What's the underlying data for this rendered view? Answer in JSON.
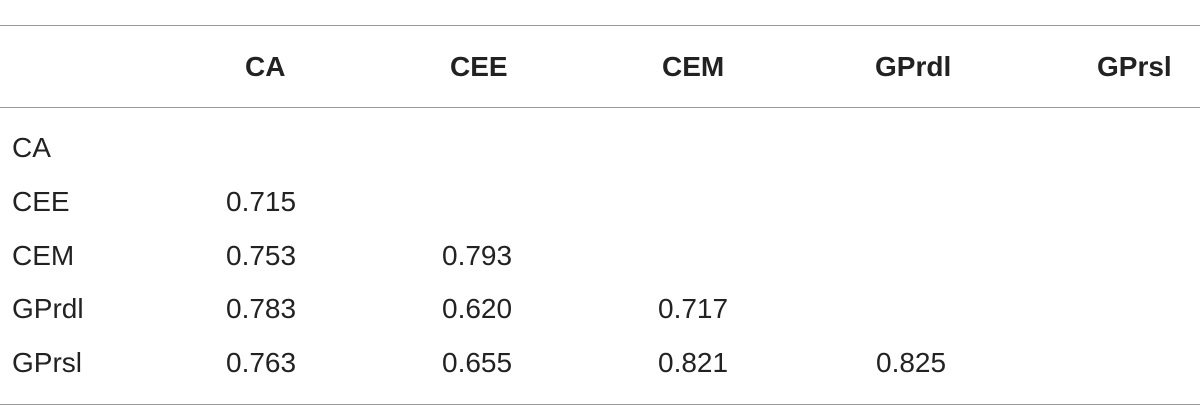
{
  "table": {
    "columns": [
      "CA",
      "CEE",
      "CEM",
      "GPrdl",
      "GPrsl"
    ],
    "rows": [
      {
        "label": "CA",
        "values": []
      },
      {
        "label": "CEE",
        "values": [
          "0.715"
        ]
      },
      {
        "label": "CEM",
        "values": [
          "0.753",
          "0.793"
        ]
      },
      {
        "label": "GPrdl",
        "values": [
          "0.783",
          "0.620",
          "0.717"
        ]
      },
      {
        "label": "GPrsl",
        "values": [
          "0.763",
          "0.655",
          "0.821",
          "0.825"
        ]
      }
    ]
  }
}
